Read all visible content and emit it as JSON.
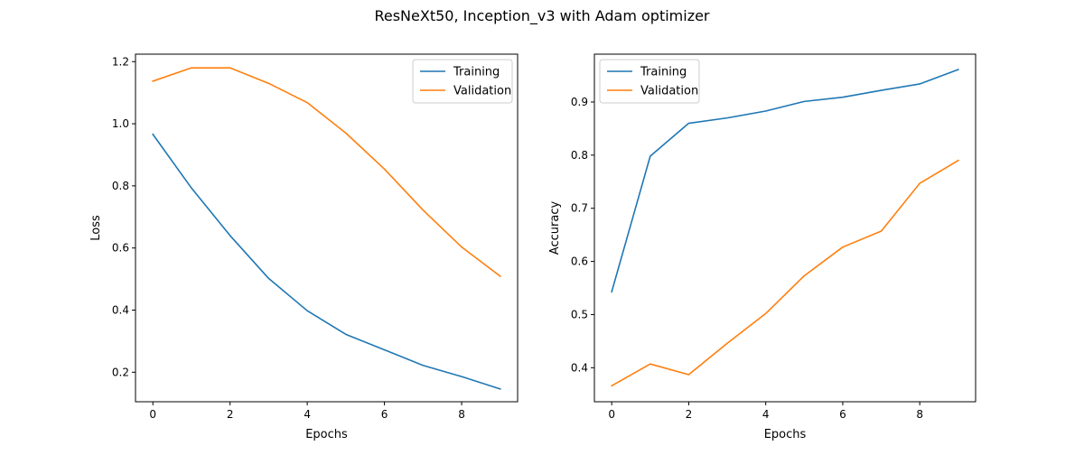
{
  "figure": {
    "title": "ResNeXt50, Inception_v3 with Adam optimizer"
  },
  "chart_data": [
    {
      "type": "line",
      "xlabel": "Epochs",
      "ylabel": "Loss",
      "x": [
        0,
        1,
        2,
        3,
        4,
        5,
        6,
        7,
        8,
        9
      ],
      "xlim": [
        -0.45,
        9.45
      ],
      "ylim": [
        0.105,
        1.224
      ],
      "xticks": [
        0,
        2,
        4,
        6,
        8
      ],
      "yticks": [
        0.2,
        0.4,
        0.6,
        0.8,
        1.0,
        1.2
      ],
      "ytick_labels": [
        "0.2",
        "0.4",
        "0.6",
        "0.8",
        "1.0",
        "1.2"
      ],
      "grid": false,
      "legend_position": "top-right",
      "series": [
        {
          "name": "Training",
          "color": "#1f77b4",
          "values": [
            0.966,
            0.793,
            0.64,
            0.502,
            0.398,
            0.322,
            0.272,
            0.222,
            0.186,
            0.146
          ]
        },
        {
          "name": "Validation",
          "color": "#ff7f0e",
          "values": [
            1.137,
            1.18,
            1.18,
            1.13,
            1.068,
            0.97,
            0.854,
            0.722,
            0.603,
            0.509
          ]
        }
      ]
    },
    {
      "type": "line",
      "xlabel": "Epochs",
      "ylabel": "Accuracy",
      "x": [
        0,
        1,
        2,
        3,
        4,
        5,
        6,
        7,
        8,
        9
      ],
      "xlim": [
        -0.45,
        9.45
      ],
      "ylim": [
        0.336,
        0.99
      ],
      "xticks": [
        0,
        2,
        4,
        6,
        8
      ],
      "yticks": [
        0.4,
        0.5,
        0.6,
        0.7,
        0.8,
        0.9
      ],
      "ytick_labels": [
        "0.4",
        "0.5",
        "0.6",
        "0.7",
        "0.8",
        "0.9"
      ],
      "grid": false,
      "legend_position": "top-left",
      "series": [
        {
          "name": "Training",
          "color": "#1f77b4",
          "values": [
            0.543,
            0.798,
            0.86,
            0.87,
            0.883,
            0.901,
            0.909,
            0.922,
            0.934,
            0.961
          ]
        },
        {
          "name": "Validation",
          "color": "#ff7f0e",
          "values": [
            0.366,
            0.407,
            0.387,
            0.446,
            0.502,
            0.573,
            0.627,
            0.657,
            0.747,
            0.79
          ]
        }
      ]
    }
  ]
}
